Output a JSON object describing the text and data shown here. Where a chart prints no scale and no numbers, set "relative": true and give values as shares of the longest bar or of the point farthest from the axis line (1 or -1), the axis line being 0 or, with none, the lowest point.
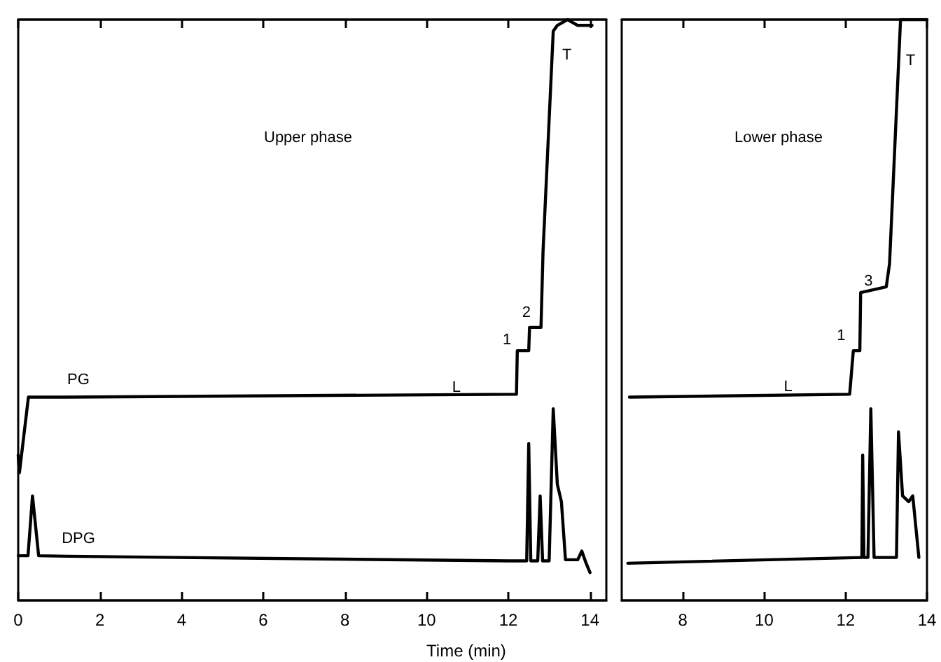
{
  "chart_data": [
    {
      "type": "line",
      "title": "Upper phase",
      "xlabel": "Time (min)",
      "relative": true,
      "xlim": [
        0,
        14.4
      ],
      "xticks": [
        0,
        2,
        4,
        6,
        8,
        10,
        12,
        14
      ],
      "tick_labels": "x",
      "marker": "none",
      "line_style": "solid",
      "series": [
        {
          "name": "PG",
          "color": "#000000",
          "x": [
            0,
            0.03,
            0.25,
            1.2,
            12.2,
            12.22,
            12.5,
            12.52,
            12.8,
            12.85,
            13.1,
            13.2,
            13.45,
            13.7,
            14.05
          ],
          "values": [
            0.25,
            0.22,
            0.35,
            0.35,
            0.355,
            0.43,
            0.43,
            0.47,
            0.47,
            0.6,
            0.98,
            0.99,
            1.0,
            0.99,
            0.99
          ]
        },
        {
          "name": "DPG",
          "color": "#000000",
          "x": [
            0,
            0.24,
            0.35,
            0.5,
            1.2,
            12.0,
            12.45,
            12.5,
            12.55,
            12.72,
            12.78,
            12.84,
            13.0,
            13.1,
            13.2,
            13.3,
            13.4,
            13.7,
            13.8,
            13.9,
            14.0
          ],
          "values": [
            0.077,
            0.077,
            0.18,
            0.077,
            0.076,
            0.068,
            0.068,
            0.27,
            0.068,
            0.068,
            0.18,
            0.068,
            0.068,
            0.33,
            0.2,
            0.17,
            0.07,
            0.07,
            0.085,
            0.065,
            0.048
          ]
        }
      ],
      "annotations": [
        "L",
        "1",
        "2",
        "T"
      ]
    },
    {
      "type": "line",
      "title": "Lower phase",
      "relative": true,
      "xlim": [
        6.5,
        14
      ],
      "xticks": [
        8,
        10,
        12,
        14
      ],
      "tick_labels": "x",
      "marker": "none",
      "line_style": "solid",
      "series": [
        {
          "color": "#000000",
          "x": [
            6.69,
            12.1,
            12.19,
            12.35,
            12.37,
            13.0,
            13.08,
            13.35,
            14.0
          ],
          "values": [
            0.35,
            0.355,
            0.43,
            0.43,
            0.53,
            0.54,
            0.58,
            1.0,
            1.0
          ]
        },
        {
          "color": "#000000",
          "x": [
            6.65,
            12.4,
            12.42,
            12.45,
            12.55,
            12.62,
            12.7,
            13.25,
            13.3,
            13.4,
            13.55,
            13.65,
            13.8
          ],
          "values": [
            0.064,
            0.074,
            0.25,
            0.074,
            0.074,
            0.33,
            0.074,
            0.074,
            0.29,
            0.18,
            0.17,
            0.18,
            0.074
          ]
        }
      ],
      "annotations": [
        "L",
        "1",
        "3",
        "T"
      ]
    }
  ]
}
